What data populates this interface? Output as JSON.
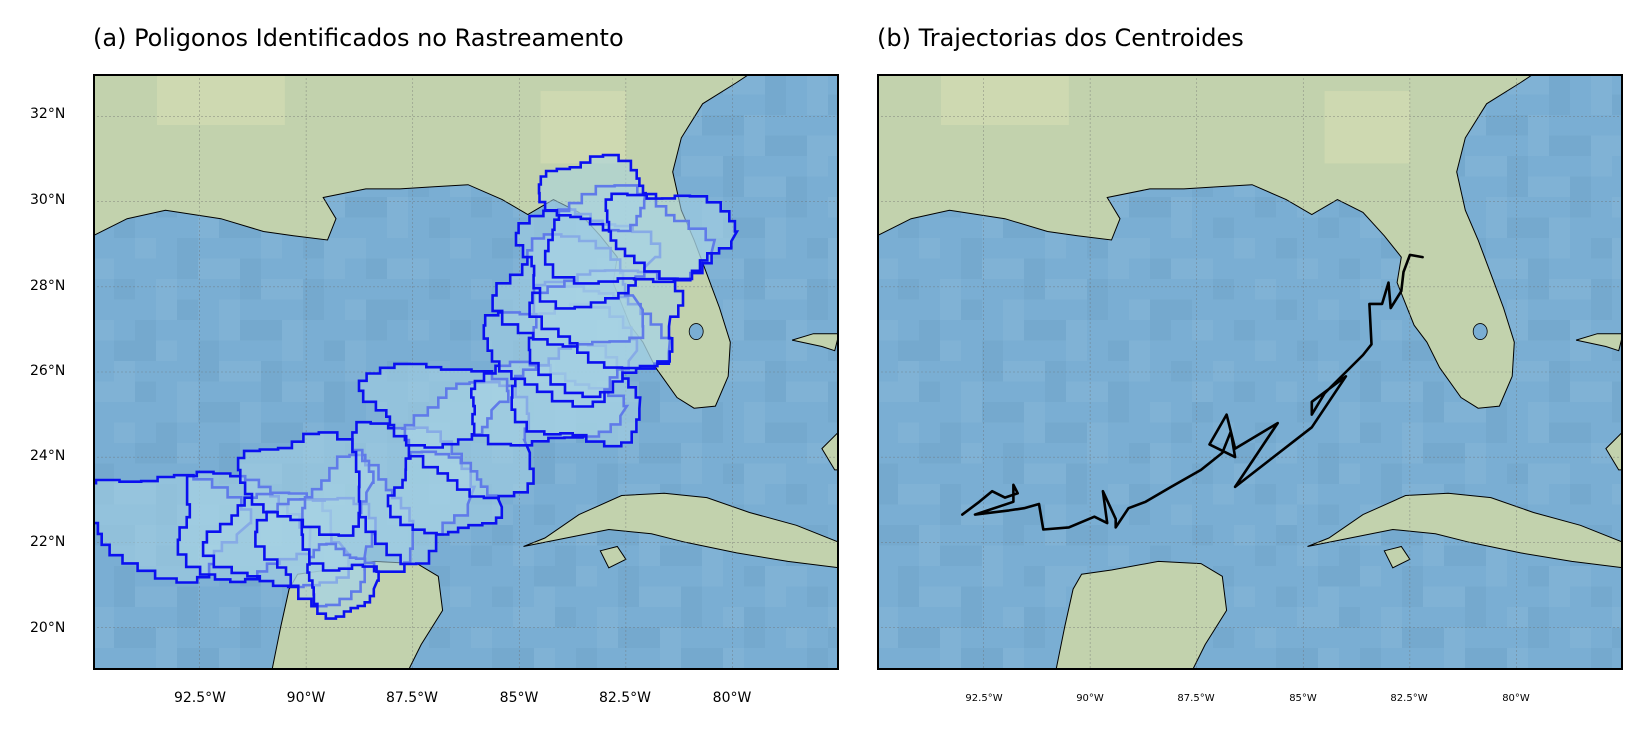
{
  "panels": [
    {
      "title": "(a) Poligonos Identificados no Rastreamento"
    },
    {
      "title": "(b) Trajectorias dos Centroides"
    }
  ],
  "y_ticks": [
    "32°N",
    "30°N",
    "28°N",
    "26°N",
    "24°N",
    "22°N",
    "20°N"
  ],
  "x_ticks": [
    "92.5°W",
    "90°W",
    "87.5°W",
    "85°W",
    "82.5°W",
    "80°W"
  ],
  "colors": {
    "ocean": "#7aaed3",
    "land": "#c2d2ad",
    "land_light": "#d8dfb4",
    "polygon_edge": "#0b10f0",
    "polygon_fill": "#a8d4e4",
    "track": "#000000",
    "coast": "#000000",
    "frame": "#000000"
  },
  "map_extent": {
    "lon": [
      -95.0,
      -77.5
    ],
    "lat": [
      19.0,
      33.0
    ]
  },
  "trajectory": [
    [
      -93.0,
      22.65
    ],
    [
      -92.6,
      22.95
    ],
    [
      -92.3,
      23.2
    ],
    [
      -92.0,
      23.05
    ],
    [
      -91.7,
      23.15
    ],
    [
      -91.8,
      23.35
    ],
    [
      -91.8,
      22.95
    ],
    [
      -92.7,
      22.65
    ],
    [
      -91.9,
      22.75
    ],
    [
      -91.55,
      22.8
    ],
    [
      -91.2,
      22.9
    ],
    [
      -91.1,
      22.3
    ],
    [
      -90.5,
      22.35
    ],
    [
      -89.9,
      22.6
    ],
    [
      -89.6,
      22.45
    ],
    [
      -89.7,
      23.2
    ],
    [
      -89.4,
      22.55
    ],
    [
      -89.4,
      22.35
    ],
    [
      -89.1,
      22.8
    ],
    [
      -88.7,
      22.95
    ],
    [
      -88.1,
      23.3
    ],
    [
      -87.4,
      23.7
    ],
    [
      -86.9,
      24.1
    ],
    [
      -86.7,
      24.6
    ],
    [
      -86.6,
      24.0
    ],
    [
      -87.2,
      24.3
    ],
    [
      -86.8,
      25.0
    ],
    [
      -86.6,
      24.2
    ],
    [
      -85.6,
      24.8
    ],
    [
      -86.6,
      23.3
    ],
    [
      -84.8,
      24.7
    ],
    [
      -84.0,
      25.9
    ],
    [
      -84.8,
      25.3
    ],
    [
      -84.8,
      25.0
    ],
    [
      -84.5,
      25.5
    ],
    [
      -84.0,
      26.0
    ],
    [
      -83.6,
      26.4
    ],
    [
      -83.4,
      26.65
    ],
    [
      -83.45,
      27.6
    ],
    [
      -83.15,
      27.6
    ],
    [
      -83.0,
      28.1
    ],
    [
      -82.95,
      27.5
    ],
    [
      -82.7,
      27.9
    ],
    [
      -82.65,
      28.35
    ],
    [
      -82.5,
      28.75
    ],
    [
      -82.2,
      28.7
    ]
  ],
  "storm_polygons": [
    {
      "lon": -93.3,
      "lat": 22.45,
      "rx": 1.85,
      "ry": 1.2
    },
    {
      "lon": -91.6,
      "lat": 22.35,
      "rx": 1.45,
      "ry": 1.25
    },
    {
      "lon": -90.6,
      "lat": 22.0,
      "rx": 1.55,
      "ry": 1.1
    },
    {
      "lon": -89.7,
      "lat": 21.9,
      "rx": 1.3,
      "ry": 1.25
    },
    {
      "lon": -89.2,
      "lat": 21.1,
      "rx": 0.8,
      "ry": 0.8
    },
    {
      "lon": -88.8,
      "lat": 22.5,
      "rx": 1.3,
      "ry": 1.3
    },
    {
      "lon": -89.9,
      "lat": 23.4,
      "rx": 1.55,
      "ry": 1.1
    },
    {
      "lon": -87.6,
      "lat": 23.3,
      "rx": 1.35,
      "ry": 1.6
    },
    {
      "lon": -86.8,
      "lat": 23.1,
      "rx": 1.2,
      "ry": 0.95
    },
    {
      "lon": -86.0,
      "lat": 24.4,
      "rx": 1.4,
      "ry": 1.35
    },
    {
      "lon": -87.0,
      "lat": 25.3,
      "rx": 1.6,
      "ry": 0.95
    },
    {
      "lon": -84.5,
      "lat": 25.2,
      "rx": 1.8,
      "ry": 0.9
    },
    {
      "lon": -83.6,
      "lat": 25.4,
      "rx": 1.5,
      "ry": 1.1
    },
    {
      "lon": -84.0,
      "lat": 26.5,
      "rx": 1.75,
      "ry": 1.1
    },
    {
      "lon": -83.3,
      "lat": 26.8,
      "rx": 1.6,
      "ry": 1.25
    },
    {
      "lon": -83.8,
      "lat": 27.8,
      "rx": 1.6,
      "ry": 1.3
    },
    {
      "lon": -82.8,
      "lat": 27.3,
      "rx": 1.65,
      "ry": 1.15
    },
    {
      "lon": -83.5,
      "lat": 28.7,
      "rx": 1.55,
      "ry": 1.1
    },
    {
      "lon": -82.5,
      "lat": 29.1,
      "rx": 1.9,
      "ry": 1.1
    },
    {
      "lon": -83.2,
      "lat": 30.2,
      "rx": 1.25,
      "ry": 0.8
    },
    {
      "lon": -81.5,
      "lat": 29.3,
      "rx": 1.5,
      "ry": 0.95
    }
  ]
}
